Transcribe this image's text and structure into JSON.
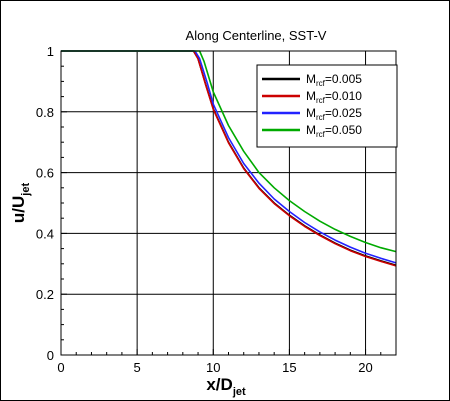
{
  "chart_data": {
    "type": "line",
    "title": "Along Centerline, SST-V",
    "xlabel": {
      "main": "x/D",
      "sub": "jet"
    },
    "ylabel": {
      "main": "u/U",
      "sub": "jet"
    },
    "xlim": [
      0,
      22
    ],
    "ylim": [
      0,
      1
    ],
    "xticks": [
      0,
      5,
      10,
      15,
      20
    ],
    "yticks": [
      0,
      0.2,
      0.4,
      0.6,
      0.8,
      1
    ],
    "xtick_labels": [
      "0",
      "5",
      "10",
      "15",
      "20"
    ],
    "ytick_labels": [
      "0",
      "0.2",
      "0.4",
      "0.6",
      "0.8",
      "1"
    ],
    "grid": true,
    "legend_position": "top-right",
    "series": [
      {
        "name": "M_rcf=0.005",
        "legend": {
          "base": "M",
          "sub": "rcf",
          "value": "=0.005"
        },
        "color": "#000000",
        "points": [
          [
            0,
            1
          ],
          [
            8.7,
            1
          ],
          [
            9.0,
            0.975
          ],
          [
            9.5,
            0.89
          ],
          [
            10,
            0.81
          ],
          [
            11,
            0.7
          ],
          [
            12,
            0.615
          ],
          [
            13,
            0.55
          ],
          [
            14,
            0.5
          ],
          [
            15,
            0.46
          ],
          [
            16,
            0.425
          ],
          [
            17,
            0.395
          ],
          [
            18,
            0.368
          ],
          [
            19,
            0.345
          ],
          [
            20,
            0.326
          ],
          [
            21,
            0.31
          ],
          [
            22,
            0.295
          ]
        ]
      },
      {
        "name": "M_rcf=0.010",
        "legend": {
          "base": "M",
          "sub": "rcf",
          "value": "=0.010"
        },
        "color": "#cc0000",
        "points": [
          [
            0,
            1
          ],
          [
            8.7,
            1
          ],
          [
            9.0,
            0.975
          ],
          [
            9.5,
            0.888
          ],
          [
            10,
            0.808
          ],
          [
            11,
            0.698
          ],
          [
            12,
            0.613
          ],
          [
            13,
            0.548
          ],
          [
            14,
            0.498
          ],
          [
            15,
            0.458
          ],
          [
            16,
            0.423
          ],
          [
            17,
            0.393
          ],
          [
            18,
            0.366
          ],
          [
            19,
            0.343
          ],
          [
            20,
            0.324
          ],
          [
            21,
            0.308
          ],
          [
            22,
            0.293
          ]
        ]
      },
      {
        "name": "M_rcf=0.025",
        "legend": {
          "base": "M",
          "sub": "rcf",
          "value": "=0.025"
        },
        "color": "#2222ff",
        "points": [
          [
            0,
            1
          ],
          [
            8.8,
            1
          ],
          [
            9.1,
            0.975
          ],
          [
            9.6,
            0.895
          ],
          [
            10,
            0.825
          ],
          [
            11,
            0.715
          ],
          [
            12,
            0.63
          ],
          [
            13,
            0.565
          ],
          [
            14,
            0.513
          ],
          [
            15,
            0.472
          ],
          [
            16,
            0.436
          ],
          [
            17,
            0.405
          ],
          [
            18,
            0.378
          ],
          [
            19,
            0.355
          ],
          [
            20,
            0.335
          ],
          [
            21,
            0.318
          ],
          [
            22,
            0.303
          ]
        ]
      },
      {
        "name": "M_rcf=0.050",
        "legend": {
          "base": "M",
          "sub": "rcf",
          "value": "=0.050"
        },
        "color": "#00aa00",
        "points": [
          [
            0,
            1
          ],
          [
            9.1,
            1
          ],
          [
            9.4,
            0.965
          ],
          [
            10,
            0.865
          ],
          [
            11,
            0.755
          ],
          [
            12,
            0.67
          ],
          [
            13,
            0.6
          ],
          [
            14,
            0.55
          ],
          [
            15,
            0.508
          ],
          [
            16,
            0.472
          ],
          [
            17,
            0.44
          ],
          [
            18,
            0.413
          ],
          [
            19,
            0.39
          ],
          [
            20,
            0.37
          ],
          [
            21,
            0.353
          ],
          [
            22,
            0.34
          ]
        ]
      }
    ]
  }
}
